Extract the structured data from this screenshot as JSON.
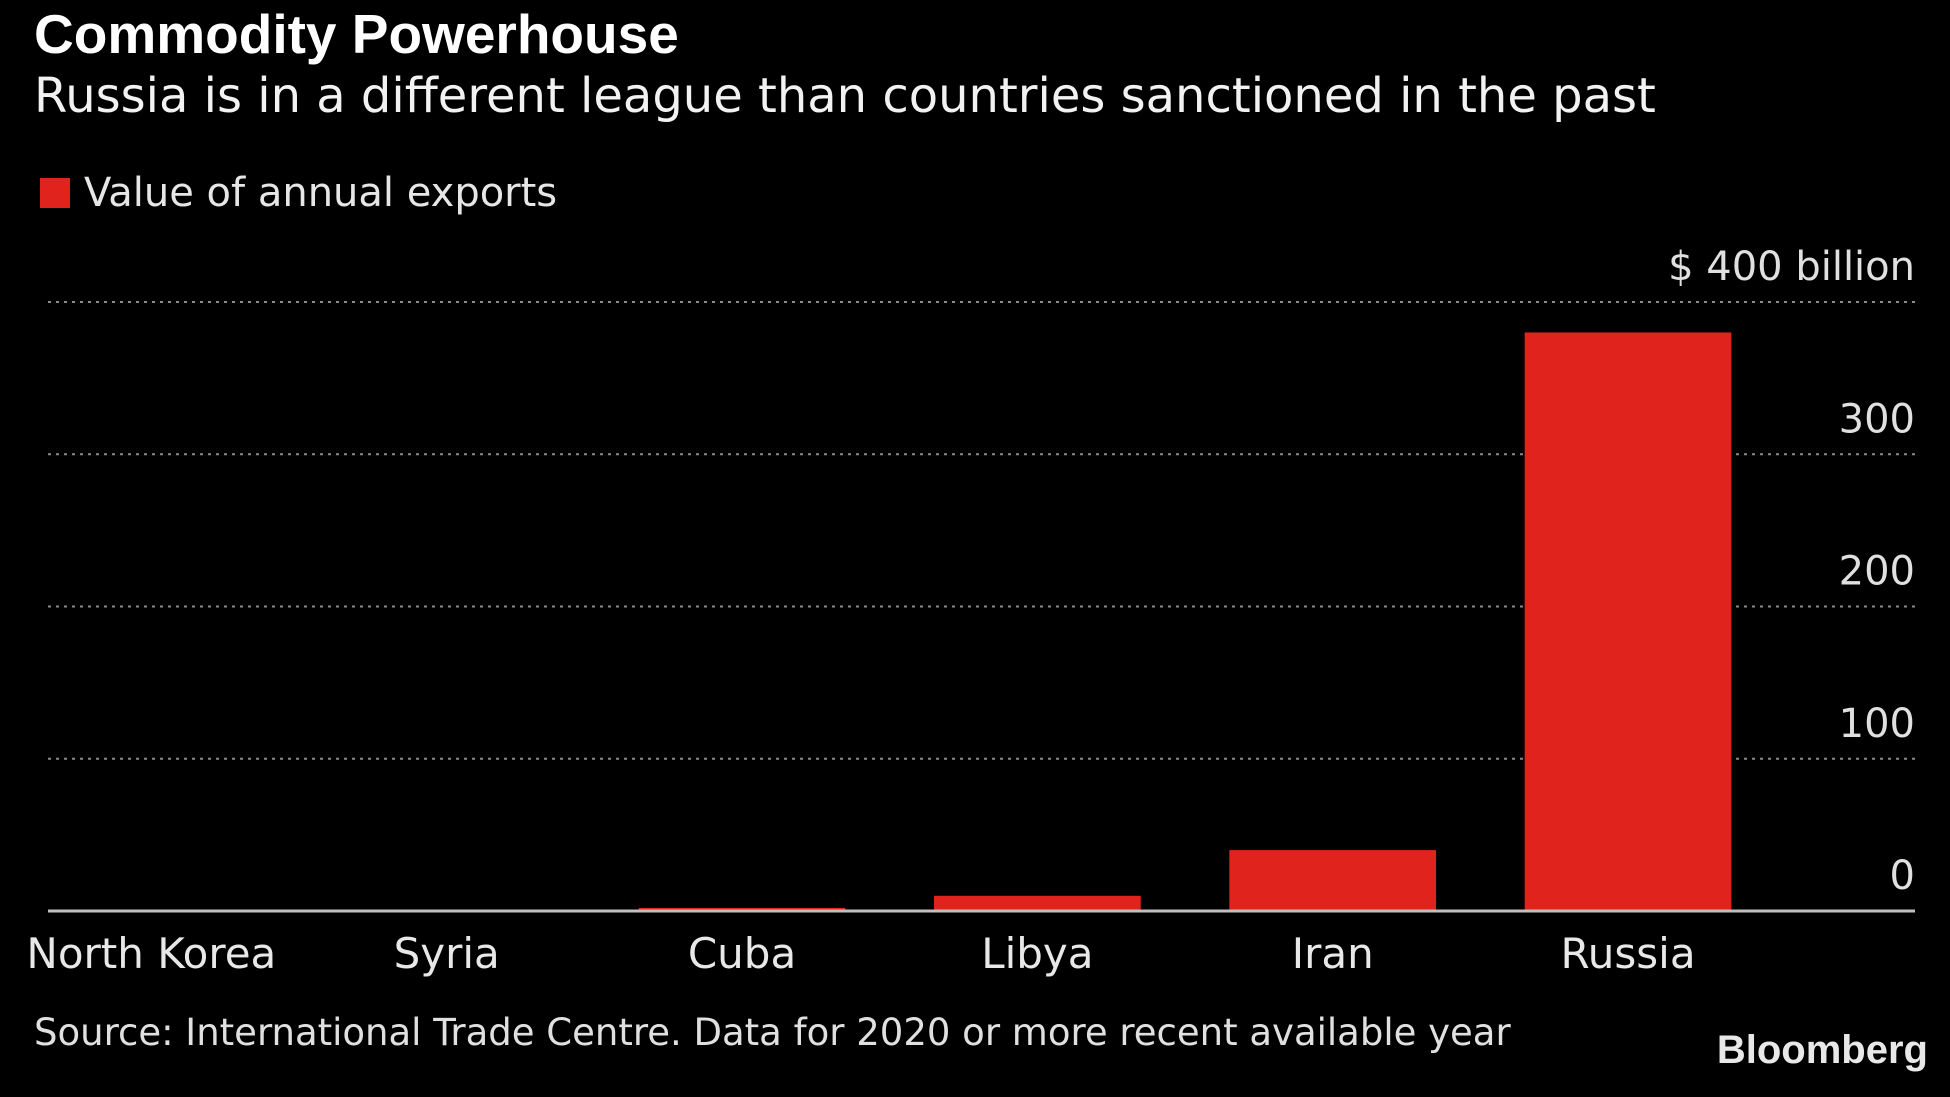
{
  "title": "Commodity Powerhouse",
  "subtitle": "Russia is in a different league than countries sanctioned in the past",
  "source": "Source: International Trade Centre. Data for 2020 or more recent available year",
  "brand": "Bloomberg",
  "colors": {
    "background": "#000000",
    "bar": "#e0241d",
    "grid": "#8a8a8a",
    "axis": "#bfbfbf"
  },
  "chart_data": {
    "type": "bar",
    "title": "Commodity Powerhouse",
    "subtitle": "Russia is in a different league than countries sanctioned in the past",
    "categories": [
      "North Korea",
      "Syria",
      "Cuba",
      "Libya",
      "Iran",
      "Russia"
    ],
    "series": [
      {
        "name": "Value of annual exports",
        "values": [
          0.4,
          0.6,
          2.0,
          10.0,
          40.0,
          380.0
        ]
      }
    ],
    "ylabel": "",
    "xlabel": "",
    "ylim": [
      0,
      400
    ],
    "yticks": [
      0,
      100,
      200,
      300,
      400
    ],
    "ytick_labels": [
      "0",
      "100",
      "200",
      "300",
      "$ 400  billion"
    ],
    "y_axis_side": "right",
    "grid": true,
    "grid_style": "dotted",
    "legend_position": "top-left"
  }
}
